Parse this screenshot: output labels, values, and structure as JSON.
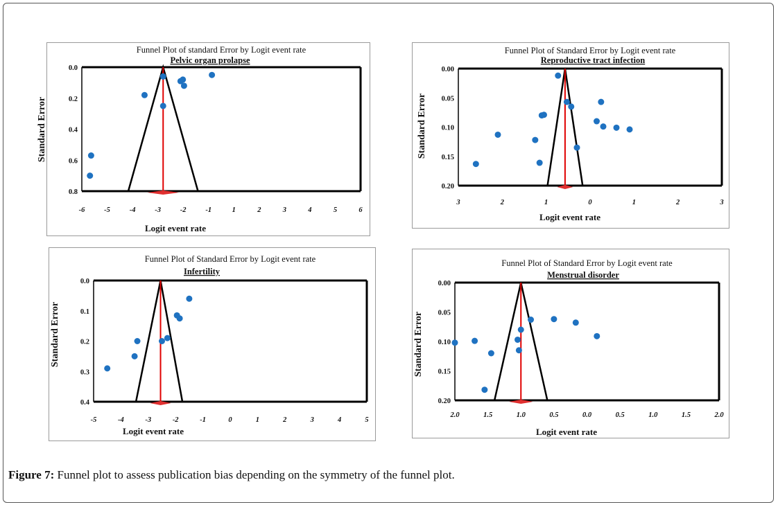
{
  "caption": {
    "label": "Figure 7:",
    "text": " Funnel plot to assess publication bias depending on the symmetry of the funnel plot."
  },
  "colors": {
    "point": "#1f72c1",
    "funnel": "#000000",
    "mean_line": "#e00000",
    "diamond": "#e03030"
  },
  "chart_data": [
    {
      "type": "scatter",
      "title": "Funnel Plot of standard Error by Logit event rate",
      "subtitle": "Pelvic organ prolapse",
      "xlabel": "Logit event rate",
      "ylabel": "Standard Error",
      "xlim": [
        -6,
        6
      ],
      "ylim": [
        0.8,
        0.0
      ],
      "y_inverted": true,
      "xticks": [
        "-6",
        "-5",
        "-4",
        "-3",
        "-2",
        "-1",
        "1",
        "2",
        "3",
        "4",
        "5",
        "6"
      ],
      "yticks": [
        "0.0",
        "0.2",
        "0.4",
        "0.6",
        "0.8"
      ],
      "mean": -2.5,
      "funnel_bottom": [
        -4.0,
        -1.0
      ],
      "points": [
        {
          "x": -5.6,
          "y": 0.57
        },
        {
          "x": -5.65,
          "y": 0.7
        },
        {
          "x": -3.3,
          "y": 0.18
        },
        {
          "x": -2.5,
          "y": 0.06
        },
        {
          "x": -2.5,
          "y": 0.25
        },
        {
          "x": -1.75,
          "y": 0.09
        },
        {
          "x": -1.65,
          "y": 0.08
        },
        {
          "x": -1.6,
          "y": 0.12
        },
        {
          "x": -0.4,
          "y": 0.05
        }
      ]
    },
    {
      "type": "scatter",
      "title": "Funnel Plot of Standard Error by Logit event rate",
      "subtitle": "Reproductive tract infection",
      "xlabel": "Logit event rate",
      "ylabel": "Standard Error",
      "xlim": [
        -3,
        3
      ],
      "ylim": [
        0.2,
        0.0
      ],
      "y_inverted": true,
      "xticks": [
        "3",
        "2",
        "1",
        "0",
        "1",
        "2",
        "3"
      ],
      "yticks": [
        "0.00",
        "0.05",
        "0.10",
        "0.15",
        "0.20"
      ],
      "mean": -0.57,
      "funnel_bottom": [
        -0.97,
        -0.17
      ],
      "points": [
        {
          "x": -2.6,
          "y": 0.163
        },
        {
          "x": -2.1,
          "y": 0.113
        },
        {
          "x": -1.25,
          "y": 0.122
        },
        {
          "x": -1.1,
          "y": 0.08
        },
        {
          "x": -1.05,
          "y": 0.079
        },
        {
          "x": -1.15,
          "y": 0.161
        },
        {
          "x": -0.73,
          "y": 0.012
        },
        {
          "x": -0.53,
          "y": 0.057
        },
        {
          "x": -0.43,
          "y": 0.065
        },
        {
          "x": -0.3,
          "y": 0.135
        },
        {
          "x": 0.15,
          "y": 0.09
        },
        {
          "x": 0.25,
          "y": 0.057
        },
        {
          "x": 0.3,
          "y": 0.099
        },
        {
          "x": 0.6,
          "y": 0.101
        },
        {
          "x": 0.9,
          "y": 0.104
        }
      ]
    },
    {
      "type": "scatter",
      "title": "Funnel Plot of Standard Error by Logit event rate",
      "subtitle": "Infertility",
      "xlabel": "Logit event rate",
      "ylabel": "Standard Error",
      "xlim": [
        -5,
        5
      ],
      "ylim": [
        0.4,
        0.0
      ],
      "y_inverted": true,
      "xticks": [
        "-5",
        "-4",
        "-3",
        "-2",
        "-1",
        "0",
        "1",
        "2",
        "3",
        "4",
        "5"
      ],
      "yticks": [
        "0.0",
        "0.1",
        "0.2",
        "0.3",
        "0.4"
      ],
      "mean": -2.55,
      "funnel_bottom": [
        -3.45,
        -1.75
      ],
      "points": [
        {
          "x": -4.5,
          "y": 0.29
        },
        {
          "x": -3.5,
          "y": 0.25
        },
        {
          "x": -3.4,
          "y": 0.2
        },
        {
          "x": -2.5,
          "y": 0.2
        },
        {
          "x": -2.3,
          "y": 0.19
        },
        {
          "x": -1.95,
          "y": 0.115
        },
        {
          "x": -1.85,
          "y": 0.125
        },
        {
          "x": -1.5,
          "y": 0.06
        }
      ]
    },
    {
      "type": "scatter",
      "title": "Funnel Plot of Standard Error by Logit event rate",
      "subtitle": "Menstrual disorder",
      "xlabel": "Logit event rate",
      "ylabel": "Standard Error",
      "xlim": [
        -2.0,
        2.0
      ],
      "ylim": [
        0.2,
        0.0
      ],
      "y_inverted": true,
      "xticks": [
        "2.0",
        "1.5",
        "1.0",
        "0.5",
        "0.0",
        "0.5",
        "1.0",
        "1.5",
        "2.0"
      ],
      "yticks": [
        "0.00",
        "0.05",
        "0.10",
        "0.15",
        "0.20"
      ],
      "mean": -1.0,
      "funnel_bottom": [
        -1.4,
        -0.6
      ],
      "points": [
        {
          "x": -2.0,
          "y": 0.102
        },
        {
          "x": -1.7,
          "y": 0.099
        },
        {
          "x": -1.45,
          "y": 0.12
        },
        {
          "x": -1.55,
          "y": 0.182
        },
        {
          "x": -1.05,
          "y": 0.097
        },
        {
          "x": -1.03,
          "y": 0.115
        },
        {
          "x": -1.0,
          "y": 0.08
        },
        {
          "x": -0.85,
          "y": 0.063
        },
        {
          "x": -0.5,
          "y": 0.062
        },
        {
          "x": -0.17,
          "y": 0.068
        },
        {
          "x": 0.15,
          "y": 0.091
        }
      ]
    }
  ]
}
